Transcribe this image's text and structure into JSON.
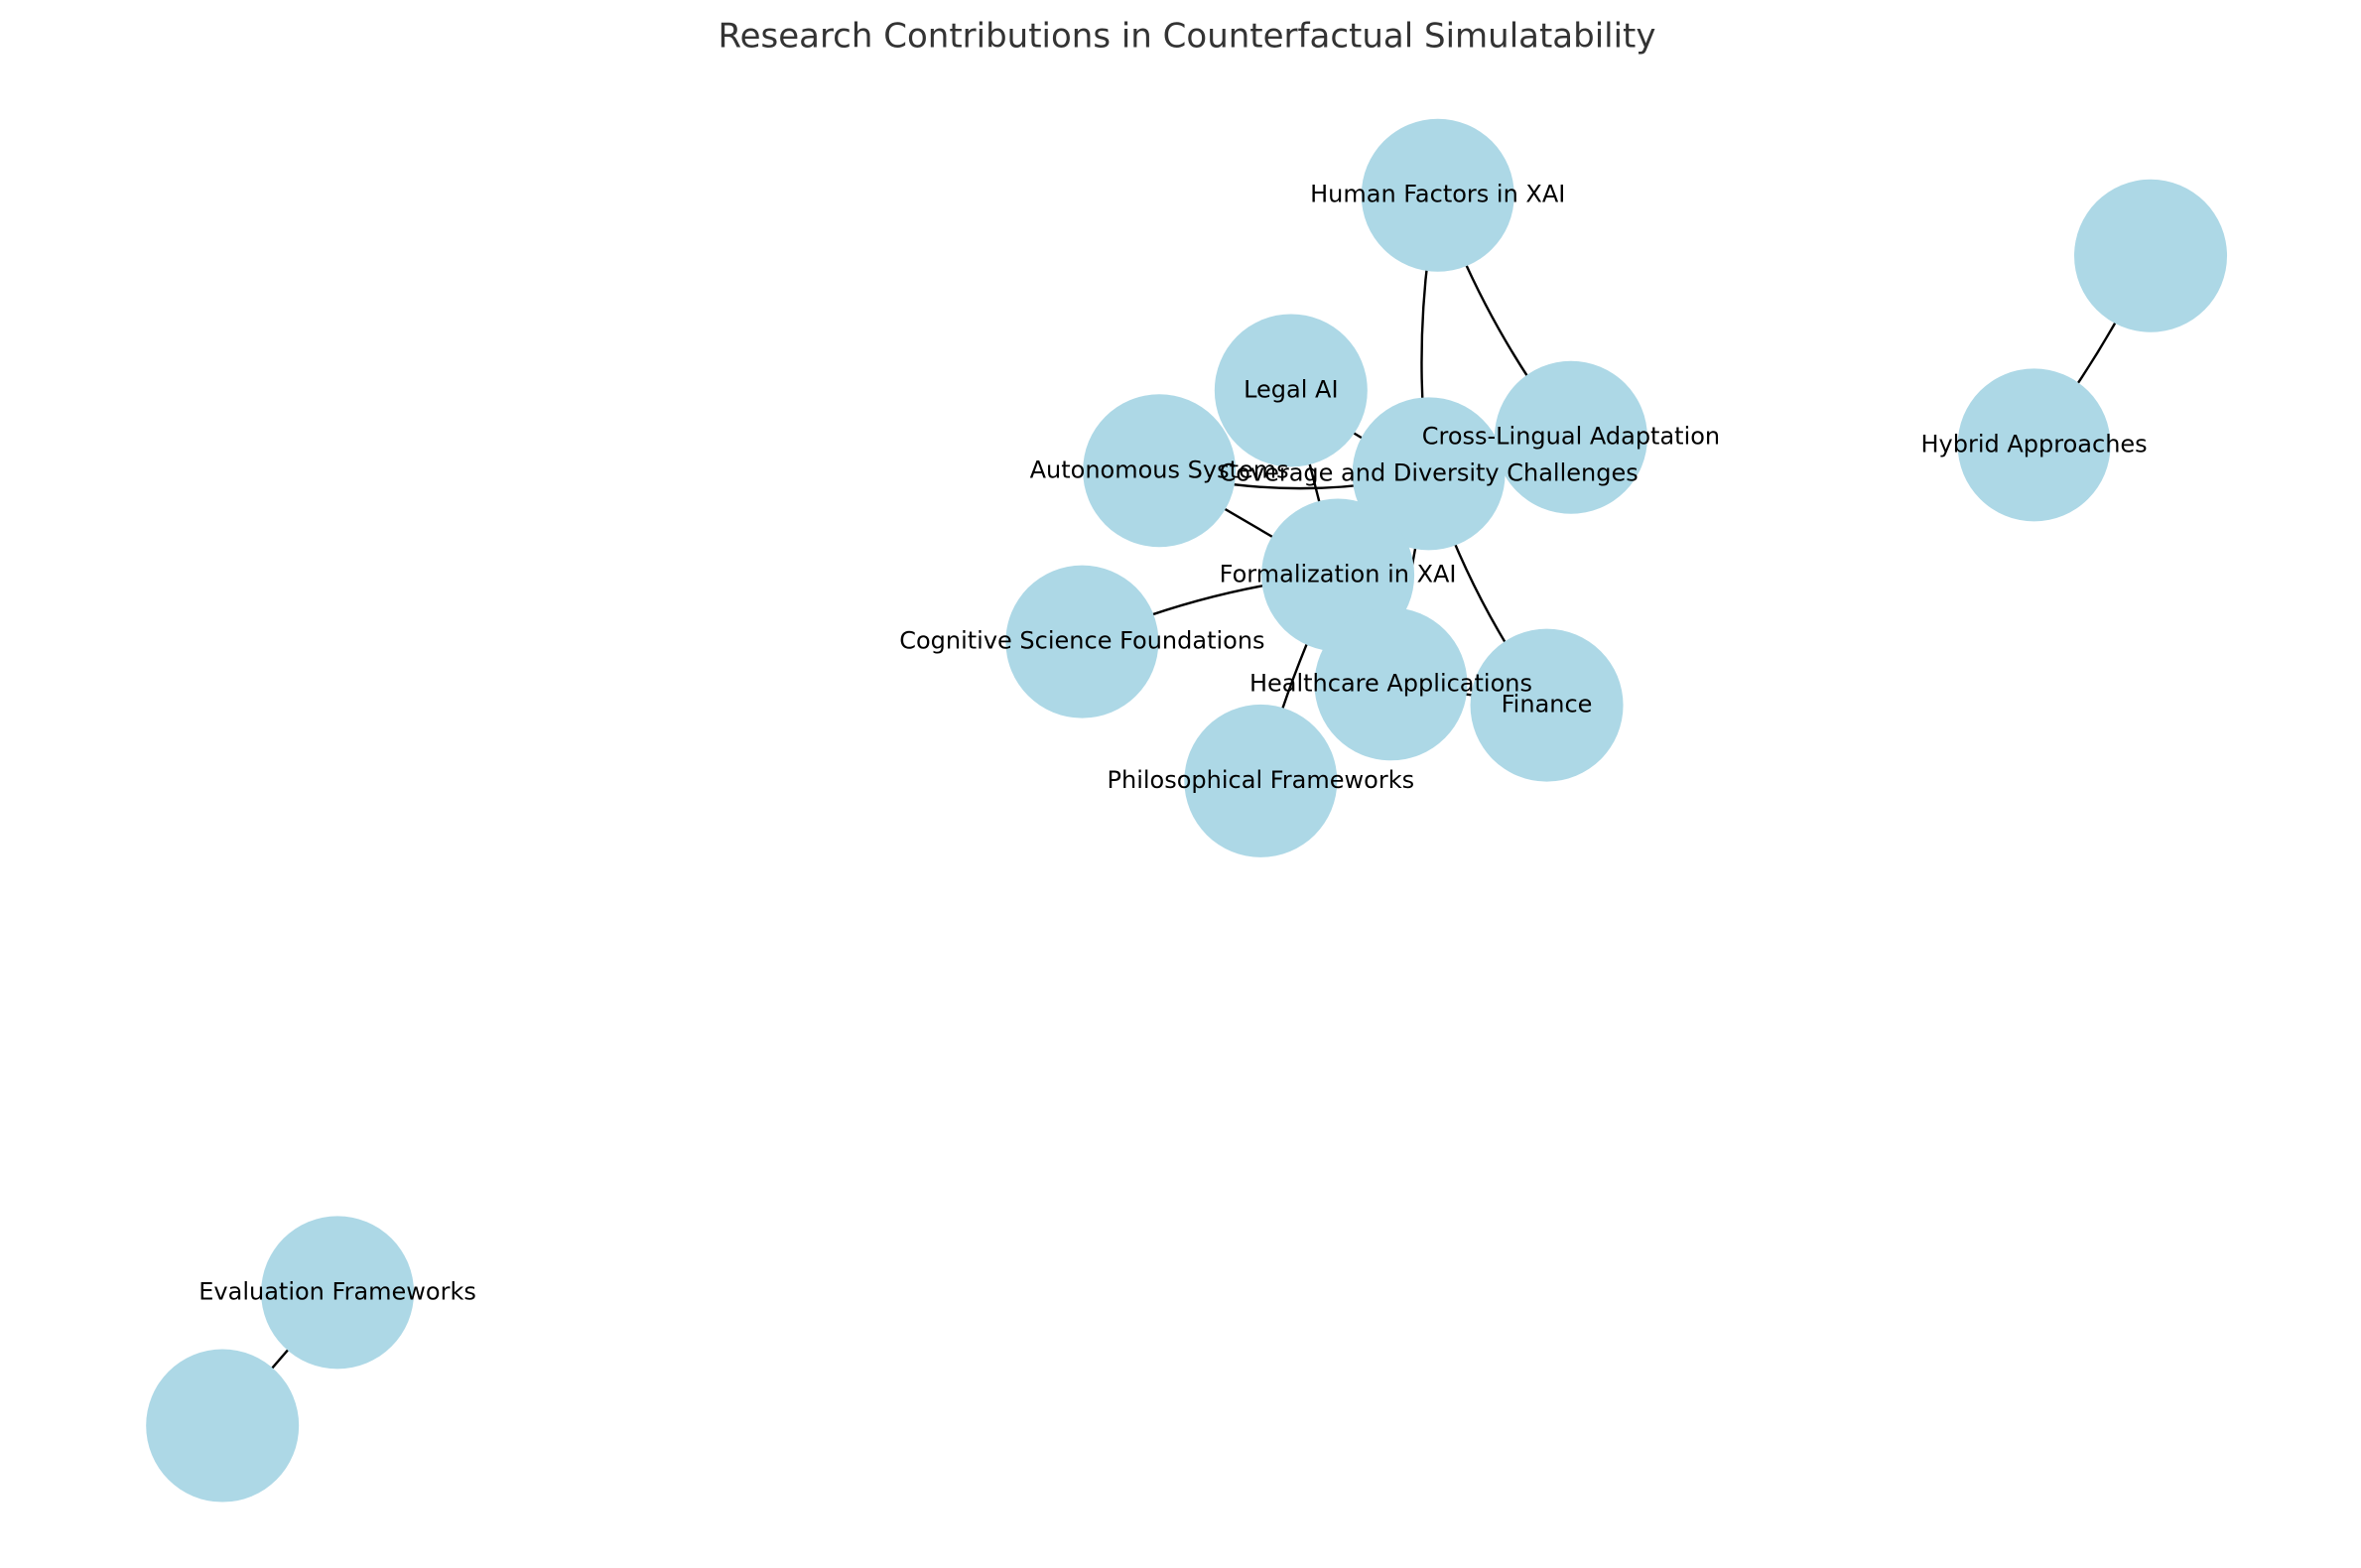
{
  "title": "Research Contributions in Counterfactual Simulatability",
  "nodes": [
    {
      "label": "Human Factors in XAI"
    },
    {
      "label": "Legal AI"
    },
    {
      "label": "Autonomous Systems"
    },
    {
      "label": "Coverage and Diversity Challenges"
    },
    {
      "label": "Cross-Lingual Adaptation"
    },
    {
      "label": "Formalization in XAI"
    },
    {
      "label": "Cognitive Science Foundations"
    },
    {
      "label": "Healthcare Applications"
    },
    {
      "label": "Finance"
    },
    {
      "label": "Philosophical Frameworks"
    },
    {
      "label": "Hybrid Approaches"
    },
    {
      "label": "Evaluation Frameworks"
    }
  ]
}
